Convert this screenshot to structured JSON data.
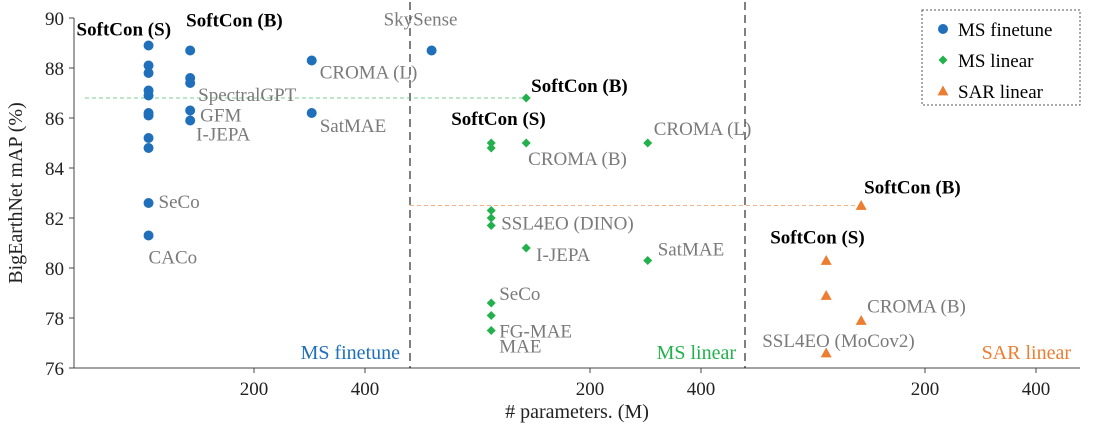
{
  "chart_data": {
    "type": "scatter",
    "ylabel": "BigEarthNet mAP (%)",
    "xlabel": "# parameters. (M)",
    "ylim": [
      76,
      90
    ],
    "yticks": [
      76,
      78,
      80,
      82,
      84,
      86,
      88,
      90
    ],
    "xlim": [
      -100,
      500
    ],
    "xticks": [
      200,
      400
    ],
    "colors": {
      "ms_finetune": "#1f6fba",
      "ms_linear": "#22b14c",
      "sar_linear": "#ed7d31"
    },
    "panels": [
      {
        "title": "MS finetune",
        "series": "ms_finetune",
        "points": [
          {
            "x": 10,
            "y": 88.1,
            "label": ""
          },
          {
            "x": 10,
            "y": 87.8,
            "label": ""
          },
          {
            "x": 10,
            "y": 87.1,
            "label": ""
          },
          {
            "x": 10,
            "y": 86.9,
            "label": ""
          },
          {
            "x": 10,
            "y": 86.2,
            "label": ""
          },
          {
            "x": 10,
            "y": 86.1,
            "label": ""
          },
          {
            "x": 10,
            "y": 85.2,
            "label": ""
          },
          {
            "x": 10,
            "y": 84.8,
            "label": ""
          },
          {
            "x": 10,
            "y": 82.6,
            "label": "SeCo"
          },
          {
            "x": 10,
            "y": 81.3,
            "label": "CACo"
          },
          {
            "x": 10,
            "y": 88.9,
            "label": "SoftCon (S)",
            "bold": true
          },
          {
            "x": 85,
            "y": 88.7,
            "label": "SoftCon (B)",
            "bold": true
          },
          {
            "x": 85,
            "y": 87.6,
            "label": ""
          },
          {
            "x": 85,
            "y": 87.4,
            "label": "SpectralGPT"
          },
          {
            "x": 85,
            "y": 86.3,
            "label": "GFM"
          },
          {
            "x": 85,
            "y": 85.9,
            "label": "I-JEPA"
          },
          {
            "x": 304,
            "y": 88.3,
            "label": "CROMA (L)"
          },
          {
            "x": 304,
            "y": 86.2,
            "label": "SatMAE"
          },
          {
            "x": 520,
            "y": 88.7,
            "label": "SkySense"
          }
        ]
      },
      {
        "title": "MS linear",
        "series": "ms_linear",
        "points": [
          {
            "x": 85,
            "y": 86.8,
            "label": "SoftCon (B)",
            "bold": true
          },
          {
            "x": 22,
            "y": 85.0,
            "label": "SoftCon (S)",
            "bold": true
          },
          {
            "x": 22,
            "y": 84.8,
            "label": ""
          },
          {
            "x": 85,
            "y": 85.0,
            "label": "CROMA (B)"
          },
          {
            "x": 304,
            "y": 85.0,
            "label": "CROMA (L)"
          },
          {
            "x": 22,
            "y": 82.3,
            "label": ""
          },
          {
            "x": 22,
            "y": 82.0,
            "label": ""
          },
          {
            "x": 22,
            "y": 81.7,
            "label": "SSL4EO (DINO)"
          },
          {
            "x": 85,
            "y": 80.8,
            "label": "I-JEPA"
          },
          {
            "x": 304,
            "y": 80.3,
            "label": "SatMAE"
          },
          {
            "x": 22,
            "y": 78.6,
            "label": "SeCo"
          },
          {
            "x": 22,
            "y": 78.1,
            "label": "FG-MAE"
          },
          {
            "x": 22,
            "y": 77.5,
            "label": "MAE"
          }
        ]
      },
      {
        "title": "SAR linear",
        "series": "sar_linear",
        "points": [
          {
            "x": 85,
            "y": 82.5,
            "label": "SoftCon (B)",
            "bold": true
          },
          {
            "x": 22,
            "y": 80.3,
            "label": "SoftCon (S)",
            "bold": true
          },
          {
            "x": 22,
            "y": 78.9,
            "label": ""
          },
          {
            "x": 85,
            "y": 77.9,
            "label": "CROMA (B)"
          },
          {
            "x": 22,
            "y": 76.6,
            "label": "SSL4EO (MoCov2)"
          }
        ]
      }
    ],
    "legend": {
      "placement": "top-right",
      "entries": [
        {
          "label": "MS finetune",
          "series": "ms_finetune",
          "marker": "circle"
        },
        {
          "label": "MS linear",
          "series": "ms_linear",
          "marker": "diamond"
        },
        {
          "label": "SAR linear",
          "series": "sar_linear",
          "marker": "triangle"
        }
      ]
    },
    "reference_lines": [
      {
        "from_panel": 0,
        "to_panel": 1,
        "y": 86.8,
        "series": "ms_linear"
      },
      {
        "from_panel": 1,
        "to_panel": 2,
        "y": 82.5,
        "series": "sar_linear"
      }
    ]
  }
}
